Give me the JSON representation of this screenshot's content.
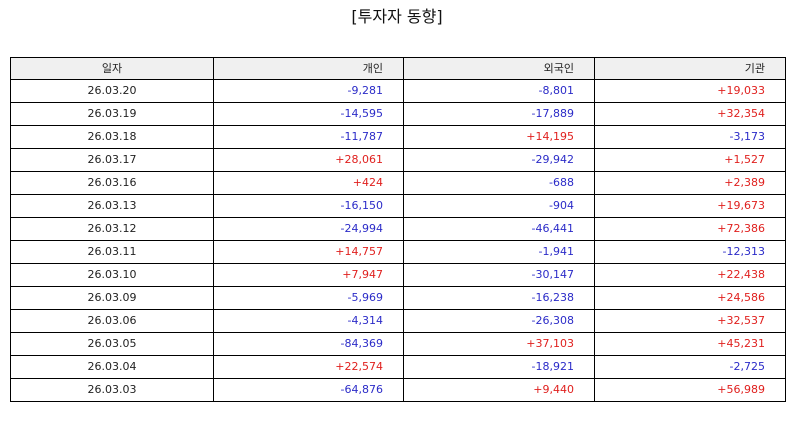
{
  "title": "[투자자 동향]",
  "colors": {
    "negative": "#2b2bc8",
    "positive": "#e0201e",
    "header_bg": "#f0f0f0"
  },
  "columns": [
    "일자",
    "개인",
    "외국인",
    "기관"
  ],
  "rows": [
    [
      "26.03.20",
      "-9,281",
      "-8,801",
      "+19,033"
    ],
    [
      "26.03.19",
      "-14,595",
      "-17,889",
      "+32,354"
    ],
    [
      "26.03.18",
      "-11,787",
      "+14,195",
      "-3,173"
    ],
    [
      "26.03.17",
      "+28,061",
      "-29,942",
      "+1,527"
    ],
    [
      "26.03.16",
      "+424",
      "-688",
      "+2,389"
    ],
    [
      "26.03.13",
      "-16,150",
      "-904",
      "+19,673"
    ],
    [
      "26.03.12",
      "-24,994",
      "-46,441",
      "+72,386"
    ],
    [
      "26.03.11",
      "+14,757",
      "-1,941",
      "-12,313"
    ],
    [
      "26.03.10",
      "+7,947",
      "-30,147",
      "+22,438"
    ],
    [
      "26.03.09",
      "-5,969",
      "-16,238",
      "+24,586"
    ],
    [
      "26.03.06",
      "-4,314",
      "-26,308",
      "+32,537"
    ],
    [
      "26.03.05",
      "-84,369",
      "+37,103",
      "+45,231"
    ],
    [
      "26.03.04",
      "+22,574",
      "-18,921",
      "-2,725"
    ],
    [
      "26.03.03",
      "-64,876",
      "+9,440",
      "+56,989"
    ]
  ]
}
